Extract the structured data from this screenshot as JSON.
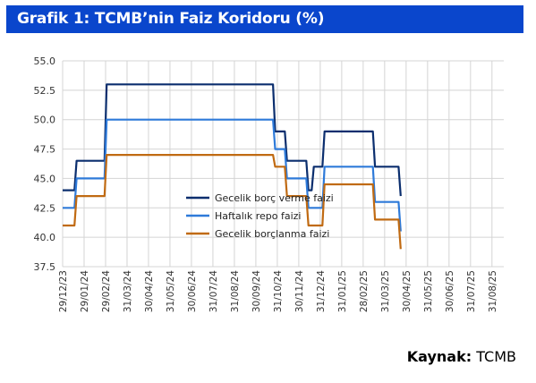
{
  "header": {
    "title": "Grafik 1: TCMB’nin Faiz Koridoru (%)"
  },
  "source": {
    "label": "Kaynak:",
    "value": "TCMB"
  },
  "chart_data": {
    "type": "line",
    "title": "Grafik 1: TCMB’nin Faiz Koridoru (%)",
    "xlabel": "",
    "ylabel": "",
    "ylim": [
      37.5,
      55.0
    ],
    "yticks": [
      "55.0",
      "52.5",
      "50.0",
      "47.5",
      "45.0",
      "42.5",
      "40.0",
      "37.5"
    ],
    "x_ticks": [
      "29/12/23",
      "29/01/24",
      "29/02/24",
      "31/03/24",
      "30/04/24",
      "31/05/24",
      "30/06/24",
      "31/07/24",
      "31/08/24",
      "30/09/24",
      "31/10/24",
      "30/11/24",
      "31/12/24",
      "31/01/25",
      "28/02/25",
      "31/03/25",
      "30/04/25",
      "31/05/25",
      "30/06/25",
      "31/07/25",
      "31/08/25"
    ],
    "grid": true,
    "legend_position": "center",
    "series": [
      {
        "name": "Gecelik borç verme faizi",
        "color": "#0b2e6e",
        "points": [
          [
            0,
            44.0
          ],
          [
            0.55,
            44.0
          ],
          [
            0.65,
            46.5
          ],
          [
            1.95,
            46.5
          ],
          [
            2.05,
            53.0
          ],
          [
            9.8,
            53.0
          ],
          [
            9.9,
            49.0
          ],
          [
            10.35,
            49.0
          ],
          [
            10.45,
            46.5
          ],
          [
            11.35,
            46.5
          ],
          [
            11.45,
            44.0
          ],
          [
            11.6,
            44.0
          ],
          [
            11.7,
            46.0
          ],
          [
            12.1,
            46.0
          ],
          [
            12.2,
            49.0
          ],
          [
            14.45,
            49.0
          ],
          [
            14.55,
            46.0
          ],
          [
            15.65,
            46.0
          ],
          [
            15.75,
            43.5
          ]
        ]
      },
      {
        "name": "Haftalık repo faizi",
        "color": "#2e7ad9",
        "points": [
          [
            0,
            42.5
          ],
          [
            0.55,
            42.5
          ],
          [
            0.65,
            45.0
          ],
          [
            1.95,
            45.0
          ],
          [
            2.05,
            50.0
          ],
          [
            9.8,
            50.0
          ],
          [
            9.9,
            47.5
          ],
          [
            10.35,
            47.5
          ],
          [
            10.45,
            45.0
          ],
          [
            11.35,
            45.0
          ],
          [
            11.45,
            42.5
          ],
          [
            12.1,
            42.5
          ],
          [
            12.2,
            46.0
          ],
          [
            14.45,
            46.0
          ],
          [
            14.55,
            43.0
          ],
          [
            15.65,
            43.0
          ],
          [
            15.75,
            40.5
          ]
        ]
      },
      {
        "name": "Gecelik borçlanma faizi",
        "color": "#c06a12",
        "points": [
          [
            0,
            41.0
          ],
          [
            0.55,
            41.0
          ],
          [
            0.65,
            43.5
          ],
          [
            1.95,
            43.5
          ],
          [
            2.05,
            47.0
          ],
          [
            9.8,
            47.0
          ],
          [
            9.9,
            46.0
          ],
          [
            10.35,
            46.0
          ],
          [
            10.45,
            43.5
          ],
          [
            11.35,
            43.5
          ],
          [
            11.45,
            41.0
          ],
          [
            12.1,
            41.0
          ],
          [
            12.2,
            44.5
          ],
          [
            14.45,
            44.5
          ],
          [
            14.55,
            41.5
          ],
          [
            15.65,
            41.5
          ],
          [
            15.75,
            39.0
          ]
        ]
      }
    ]
  }
}
